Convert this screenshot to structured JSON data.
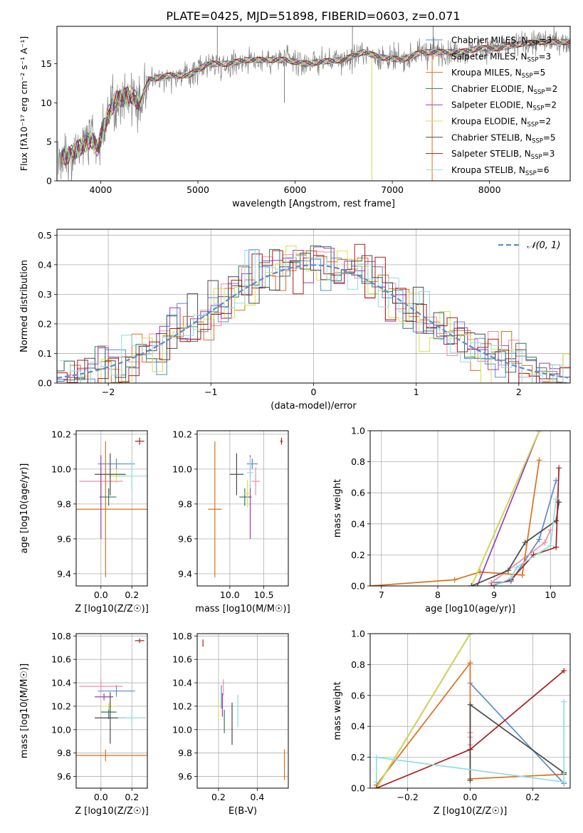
{
  "figure": {
    "title": "PLATE=0425, MJD=51898, FIBERID=0603, z=0.071"
  },
  "models": [
    {
      "name": "Chabrier MILES",
      "n_ssp": 3,
      "color": "#5b8bd1"
    },
    {
      "name": "Salpeter MILES",
      "n_ssp": 3,
      "color": "#f08ca8"
    },
    {
      "name": "Kroupa MILES",
      "n_ssp": 5,
      "color": "#d9711b"
    },
    {
      "name": "Chabrier ELODIE",
      "n_ssp": 2,
      "color": "#2f7a5d"
    },
    {
      "name": "Salpeter ELODIE",
      "n_ssp": 2,
      "color": "#9a3fb5"
    },
    {
      "name": "Kroupa ELODIE",
      "n_ssp": 2,
      "color": "#d6e04a"
    },
    {
      "name": "Chabrier STELIB",
      "n_ssp": 5,
      "color": "#4a4a4a"
    },
    {
      "name": "Salpeter STELIB",
      "n_ssp": 3,
      "color": "#a81d1d"
    },
    {
      "name": "Kroupa STELIB",
      "n_ssp": 6,
      "color": "#8fdde0"
    }
  ],
  "chart_data": [
    {
      "id": "spectrum",
      "type": "line",
      "title": "PLATE=0425, MJD=51898, FIBERID=0603, z=0.071",
      "xlabel": "wavelength [Angstrom, rest frame]",
      "ylabel": "Flux [f_λ 10^-17 erg cm^-2 s^-1 A^-1]",
      "xlim": [
        3550,
        8830
      ],
      "ylim": [
        0,
        19.8
      ],
      "xticks": [
        4000,
        5000,
        6000,
        7000,
        8000
      ],
      "yticks": [
        0,
        5,
        10,
        15
      ],
      "grid": false,
      "legend": "right",
      "data_color": "#808080",
      "anchor_wavelength": [
        3560,
        3620,
        3700,
        3800,
        3900,
        3970,
        4050,
        4150,
        4300,
        4400,
        4500,
        4700,
        4900,
        5100,
        5300,
        5500,
        5700,
        5900,
        6100,
        6300,
        6500,
        6700,
        6900,
        7100,
        7300,
        7500,
        7700,
        7900,
        8100,
        8300,
        8500,
        8830
      ],
      "anchor_flux": [
        2.5,
        3.2,
        3.5,
        4.2,
        5.5,
        4.2,
        7.5,
        10.5,
        11.0,
        10.0,
        13.0,
        13.5,
        13.5,
        15.0,
        15.0,
        15.5,
        15.5,
        15.5,
        15.0,
        15.3,
        15.5,
        16.5,
        15.8,
        15.5,
        16.5,
        16.5,
        16.5,
        17.0,
        17.0,
        17.5,
        17.8,
        17.8
      ],
      "spikes": [
        {
          "x": 5200,
          "y": 19.8,
          "direction": "up"
        },
        {
          "x": 6590,
          "y": 19.8,
          "direction": "up"
        },
        {
          "x": 7420,
          "y": 19.8,
          "direction": "up"
        },
        {
          "x": 5890,
          "y": 10.0,
          "direction": "down"
        },
        {
          "x": 6790,
          "y": 0.0,
          "direction": "down"
        },
        {
          "x": 7410,
          "y": 0.0,
          "direction": "down"
        }
      ]
    },
    {
      "id": "residuals",
      "type": "line",
      "xlabel": "(data-model)/error",
      "ylabel": "Normed distribution",
      "xlim": [
        -2.5,
        2.5
      ],
      "ylim": [
        0,
        0.52
      ],
      "xticks": [
        -2,
        -1,
        0,
        1,
        2
      ],
      "yticks": [
        0.0,
        0.1,
        0.2,
        0.3,
        0.4,
        0.5
      ],
      "grid": true,
      "legend": "top-right",
      "legend_label": "𝒩(0, 1)",
      "gauss_color": "#5b8bd1",
      "bin_width": 0.1
    },
    {
      "id": "age-vs-Z",
      "type": "scatter",
      "xlabel": "Z [log10(Z/Z☉)]",
      "ylabel": "age [log10(age/yr)]",
      "xlim": [
        -0.16,
        0.3
      ],
      "ylim": [
        9.33,
        10.22
      ],
      "xticks": [
        0.0,
        0.2
      ],
      "yticks": [
        9.4,
        9.6,
        9.8,
        10.0,
        10.2
      ],
      "grid": true,
      "points": [
        {
          "model": 0,
          "x": 0.1,
          "y": 10.03,
          "xerr": 0.12,
          "yerr": 0.03
        },
        {
          "model": 1,
          "x": 0.0,
          "y": 9.93,
          "xerr": 0.14,
          "yerr": 0.08
        },
        {
          "model": 2,
          "x": 0.03,
          "y": 9.77,
          "xerr": 0.27,
          "yerr": 0.39
        },
        {
          "model": 3,
          "x": 0.05,
          "y": 9.84,
          "xerr": 0.05,
          "yerr": 0.05
        },
        {
          "model": 4,
          "x": 0.0,
          "y": 9.84,
          "xerr": 0.01,
          "yerr": 0.24
        },
        {
          "model": 5,
          "x": 0.1,
          "y": 9.96,
          "xerr": 0.05,
          "yerr": 0.04
        },
        {
          "model": 6,
          "x": 0.06,
          "y": 9.97,
          "xerr": 0.1,
          "yerr": 0.12
        },
        {
          "model": 7,
          "x": 0.25,
          "y": 10.16,
          "xerr": 0.03,
          "yerr": 0.02
        },
        {
          "model": 8,
          "x": 0.2,
          "y": 9.96,
          "xerr": 0.1,
          "yerr": 0.09
        }
      ]
    },
    {
      "id": "age-vs-mass",
      "type": "scatter",
      "xlabel": "mass [log10(M/M☉)]",
      "ylabel": "",
      "xlim": [
        9.52,
        10.86
      ],
      "ylim": [
        9.33,
        10.22
      ],
      "xticks": [
        10.0,
        10.5
      ],
      "yticks": [
        9.4,
        9.6,
        9.8,
        10.0,
        10.2
      ],
      "grid": true,
      "points": [
        {
          "model": 0,
          "x": 10.33,
          "y": 10.03,
          "xerr": 0.08,
          "yerr": 0.03
        },
        {
          "model": 1,
          "x": 10.38,
          "y": 9.93,
          "xerr": 0.06,
          "yerr": 0.08
        },
        {
          "model": 2,
          "x": 9.78,
          "y": 9.77,
          "xerr": 0.1,
          "yerr": 0.39
        },
        {
          "model": 3,
          "x": 10.22,
          "y": 9.84,
          "xerr": 0.08,
          "yerr": 0.05
        },
        {
          "model": 4,
          "x": 10.3,
          "y": 9.84,
          "xerr": 0.02,
          "yerr": 0.24
        },
        {
          "model": 5,
          "x": 10.26,
          "y": 9.86,
          "xerr": 0.05,
          "yerr": 0.08
        },
        {
          "model": 6,
          "x": 10.1,
          "y": 9.97,
          "xerr": 0.1,
          "yerr": 0.12
        },
        {
          "model": 7,
          "x": 10.76,
          "y": 10.16,
          "xerr": 0.02,
          "yerr": 0.02
        },
        {
          "model": 8,
          "x": 10.3,
          "y": 9.98,
          "xerr": 0.05,
          "yerr": 0.09
        }
      ]
    },
    {
      "id": "mass-weight-vs-age",
      "type": "line",
      "xlabel": "age [log10(age/yr)]",
      "ylabel": "mass weight",
      "xlim": [
        6.8,
        10.35
      ],
      "ylim": [
        0.0,
        1.0
      ],
      "xticks": [
        7,
        8,
        9,
        10
      ],
      "yticks": [
        0.0,
        0.2,
        0.4,
        0.6,
        0.8,
        1.0
      ],
      "grid": true,
      "series": [
        {
          "model": 0,
          "x": [
            8.95,
            9.3,
            9.8,
            10.1
          ],
          "y": [
            0.02,
            0.03,
            0.3,
            0.68
          ]
        },
        {
          "model": 1,
          "x": [
            8.95,
            9.9,
            10.0
          ],
          "y": [
            0.02,
            0.28,
            0.36
          ]
        },
        {
          "model": 2,
          "x": [
            6.8,
            8.3,
            8.75,
            9.5,
            9.8
          ],
          "y": [
            0.0,
            0.04,
            0.09,
            0.07,
            0.81
          ]
        },
        {
          "model": 3,
          "x": [
            8.6,
            9.8
          ],
          "y": [
            0.0,
            1.0
          ]
        },
        {
          "model": 4,
          "x": [
            8.7,
            9.8
          ],
          "y": [
            0.0,
            1.0
          ]
        },
        {
          "model": 5,
          "x": [
            8.6,
            9.8
          ],
          "y": [
            0.0,
            1.0
          ]
        },
        {
          "model": 6,
          "x": [
            8.6,
            9.25,
            9.55,
            10.1,
            10.15
          ],
          "y": [
            0.0,
            0.1,
            0.28,
            0.42,
            0.54
          ]
        },
        {
          "model": 7,
          "x": [
            8.95,
            9.3,
            9.7,
            10.1,
            10.15
          ],
          "y": [
            0.0,
            0.04,
            0.2,
            0.25,
            0.76
          ]
        },
        {
          "model": 8,
          "x": [
            9.0,
            9.3,
            9.4,
            10.0,
            10.1
          ],
          "y": [
            0.0,
            0.05,
            0.12,
            0.26,
            0.56
          ]
        }
      ]
    },
    {
      "id": "mass-vs-Z",
      "type": "scatter",
      "xlabel": "Z [log10(Z/Z☉)]",
      "ylabel": "mass [log10(M/M☉)]",
      "xlim": [
        -0.16,
        0.3
      ],
      "ylim": [
        9.5,
        10.82
      ],
      "xticks": [
        0.0,
        0.2
      ],
      "yticks": [
        9.6,
        9.8,
        10.0,
        10.2,
        10.4,
        10.6,
        10.8
      ],
      "grid": true,
      "points": [
        {
          "model": 0,
          "x": 0.1,
          "y": 10.33,
          "xerr": 0.12,
          "yerr": 0.05
        },
        {
          "model": 1,
          "x": 0.0,
          "y": 10.37,
          "xerr": 0.14,
          "yerr": 0.06
        },
        {
          "model": 2,
          "x": 0.03,
          "y": 9.78,
          "xerr": 0.27,
          "yerr": 0.05
        },
        {
          "model": 3,
          "x": 0.05,
          "y": 10.15,
          "xerr": 0.05,
          "yerr": 0.06
        },
        {
          "model": 4,
          "x": 0.02,
          "y": 10.28,
          "xerr": 0.06,
          "yerr": 0.03
        },
        {
          "model": 5,
          "x": 0.05,
          "y": 10.2,
          "xerr": 0.05,
          "yerr": 0.03
        },
        {
          "model": 6,
          "x": 0.06,
          "y": 10.1,
          "xerr": 0.1,
          "yerr": 0.22
        },
        {
          "model": 7,
          "x": 0.25,
          "y": 10.76,
          "xerr": 0.03,
          "yerr": 0.02
        },
        {
          "model": 8,
          "x": 0.2,
          "y": 10.1,
          "xerr": 0.09,
          "yerr": 0.07
        }
      ]
    },
    {
      "id": "mass-vs-EBV",
      "type": "scatter",
      "xlabel": "E(B-V)",
      "ylabel": "",
      "xlim": [
        0.09,
        0.56
      ],
      "ylim": [
        9.5,
        10.82
      ],
      "xticks": [
        0.2,
        0.4
      ],
      "yticks": [
        9.6,
        9.8,
        10.0,
        10.2,
        10.4,
        10.6,
        10.8
      ],
      "grid": true,
      "points": [
        {
          "model": 0,
          "x": 0.215,
          "y": 10.28,
          "xerr": 0.0,
          "yerr": 0.1
        },
        {
          "model": 1,
          "x": 0.225,
          "y": 10.36,
          "xerr": 0.0,
          "yerr": 0.07
        },
        {
          "model": 2,
          "x": 0.54,
          "y": 9.7,
          "xerr": 0.0,
          "yerr": 0.13
        },
        {
          "model": 3,
          "x": 0.23,
          "y": 10.07,
          "xerr": 0.0,
          "yerr": 0.1
        },
        {
          "model": 4,
          "x": 0.22,
          "y": 10.21,
          "xerr": 0.0,
          "yerr": 0.1
        },
        {
          "model": 5,
          "x": 0.2,
          "y": 10.17,
          "xerr": 0.0,
          "yerr": 0.08
        },
        {
          "model": 6,
          "x": 0.27,
          "y": 10.05,
          "xerr": 0.0,
          "yerr": 0.18
        },
        {
          "model": 7,
          "x": 0.12,
          "y": 10.74,
          "xerr": 0.0,
          "yerr": 0.03
        },
        {
          "model": 8,
          "x": 0.3,
          "y": 10.16,
          "xerr": 0.0,
          "yerr": 0.14
        }
      ]
    },
    {
      "id": "mass-weight-vs-Z",
      "type": "line",
      "xlabel": "Z [log10(Z/Z☉)]",
      "ylabel": "mass weight",
      "xlim": [
        -0.32,
        0.32
      ],
      "ylim": [
        0.0,
        1.0
      ],
      "xticks": [
        -0.2,
        0.0,
        0.2
      ],
      "yticks": [
        0.0,
        0.2,
        0.4,
        0.6,
        0.8,
        1.0
      ],
      "grid": true,
      "series": [
        {
          "model": 0,
          "x": [
            0.0,
            0.3
          ],
          "y": [
            0.68,
            0.03
          ]
        },
        {
          "model": 1,
          "x": [
            0.0,
            0.0,
            0.0
          ],
          "y": [
            0.36,
            0.33,
            0.28
          ]
        },
        {
          "model": 2,
          "x": [
            -0.3,
            0.0,
            0.0,
            0.3
          ],
          "y": [
            0.02,
            0.81,
            0.06,
            0.09
          ]
        },
        {
          "model": 3,
          "x": [
            -0.3,
            0.0
          ],
          "y": [
            0.0,
            1.0
          ]
        },
        {
          "model": 4,
          "x": [
            -0.3,
            0.0
          ],
          "y": [
            0.0,
            1.0
          ]
        },
        {
          "model": 5,
          "x": [
            -0.3,
            0.0
          ],
          "y": [
            0.0,
            1.0
          ]
        },
        {
          "model": 6,
          "x": [
            0.0,
            0.0,
            0.3,
            0.3
          ],
          "y": [
            0.05,
            0.54,
            0.1,
            0.09
          ]
        },
        {
          "model": 7,
          "x": [
            -0.3,
            0.0,
            0.3
          ],
          "y": [
            0.0,
            0.25,
            0.76
          ]
        },
        {
          "model": 8,
          "x": [
            -0.3,
            -0.3,
            0.3,
            0.3
          ],
          "y": [
            0.04,
            0.2,
            0.04,
            0.56
          ]
        }
      ]
    }
  ]
}
